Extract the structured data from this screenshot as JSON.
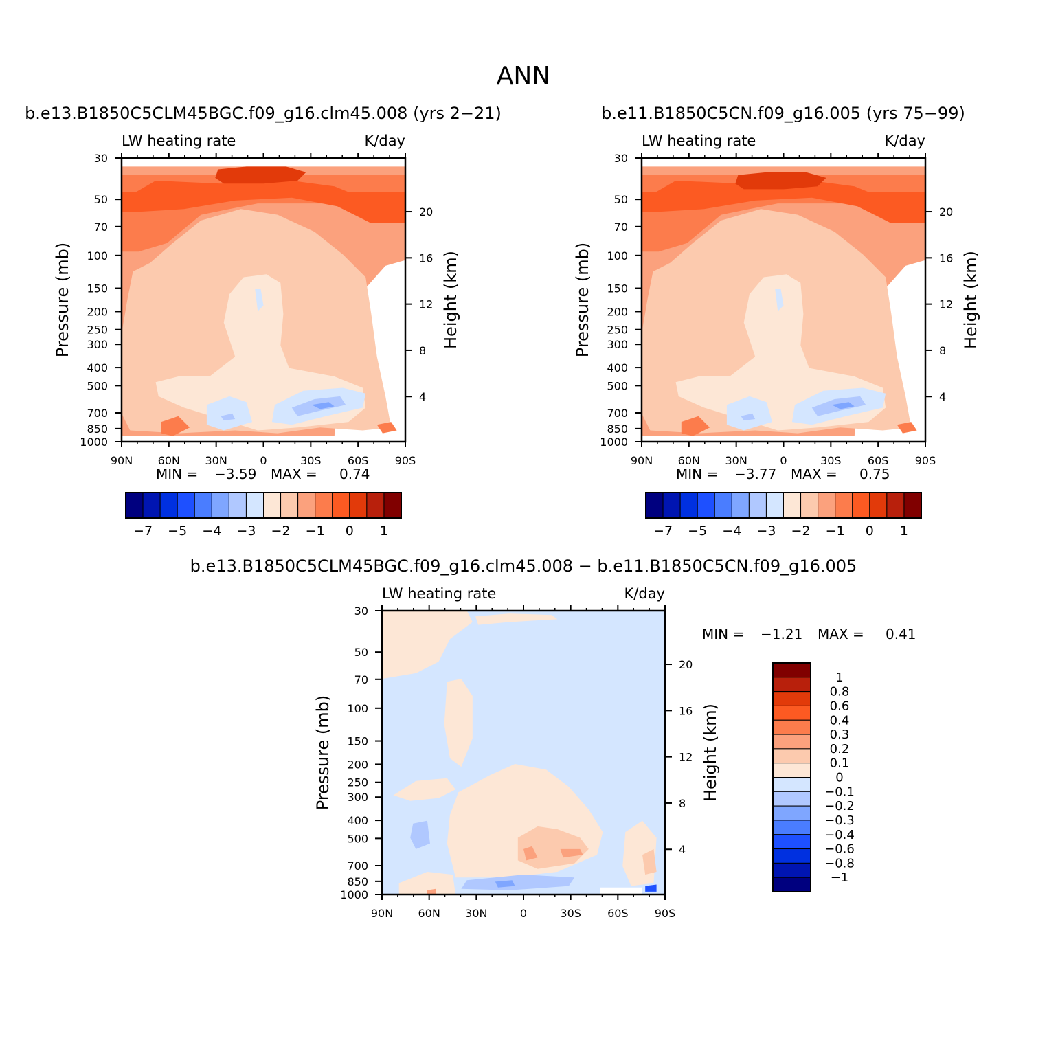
{
  "figure": {
    "title": "ANN"
  },
  "chart_data": [
    {
      "type": "heatmap",
      "id": "case1",
      "title": "b.e13.B1850C5CLM45BGC.f09_g16.clm45.008 (yrs 2-21)",
      "left_label": "LW heating rate",
      "right_label": "K/day",
      "xlabel": "",
      "ylabel": "Pressure (mb)",
      "ylabel_right": "Height (km)",
      "x_ticks": [
        "90N",
        "60N",
        "30N",
        "0",
        "30S",
        "60S",
        "90S"
      ],
      "y_ticks": [
        "30",
        "50",
        "70",
        "100",
        "150",
        "200",
        "250",
        "300",
        "400",
        "500",
        "700",
        "850",
        "1000"
      ],
      "y_ticks_right": [
        "20",
        "16",
        "12",
        "8",
        "4"
      ],
      "min_label": "MIN =",
      "min_value": "-3.59",
      "max_label": "MAX =",
      "max_value": "0.74",
      "colorbar_labels": [
        "-7",
        "-5",
        "-4",
        "-3",
        "-2",
        "-1",
        "0",
        "1"
      ],
      "colorbar_colors": [
        "#00007f",
        "#0015b2",
        "#0030e0",
        "#1e50ff",
        "#4a7dff",
        "#7fa6ff",
        "#b0c8ff",
        "#d4e6ff",
        "#fde7d6",
        "#fccaae",
        "#fba17d",
        "#fc7c4c",
        "#fc5a22",
        "#e23a0a",
        "#b8200c",
        "#800000"
      ]
    },
    {
      "type": "heatmap",
      "id": "case2",
      "title": "b.e11.B1850C5CN.f09_g16.005 (yrs 75-99)",
      "left_label": "LW heating rate",
      "right_label": "K/day",
      "xlabel": "",
      "ylabel": "Pressure (mb)",
      "ylabel_right": "Height (km)",
      "x_ticks": [
        "90N",
        "60N",
        "30N",
        "0",
        "30S",
        "60S",
        "90S"
      ],
      "y_ticks": [
        "30",
        "50",
        "70",
        "100",
        "150",
        "200",
        "250",
        "300",
        "400",
        "500",
        "700",
        "850",
        "1000"
      ],
      "y_ticks_right": [
        "20",
        "16",
        "12",
        "8",
        "4"
      ],
      "min_label": "MIN =",
      "min_value": "-3.77",
      "max_label": "MAX =",
      "max_value": "0.75",
      "colorbar_labels": [
        "-7",
        "-5",
        "-4",
        "-3",
        "-2",
        "-1",
        "0",
        "1"
      ],
      "colorbar_colors": [
        "#00007f",
        "#0015b2",
        "#0030e0",
        "#1e50ff",
        "#4a7dff",
        "#7fa6ff",
        "#b0c8ff",
        "#d4e6ff",
        "#fde7d6",
        "#fccaae",
        "#fba17d",
        "#fc7c4c",
        "#fc5a22",
        "#e23a0a",
        "#b8200c",
        "#800000"
      ]
    },
    {
      "type": "heatmap",
      "id": "diff",
      "title": "b.e13.B1850C5CLM45BGC.f09_g16.clm45.008 - b.e11.B1850C5CN.f09_g16.005",
      "left_label": "LW heating rate",
      "right_label": "K/day",
      "xlabel": "",
      "ylabel": "Pressure (mb)",
      "ylabel_right": "Height (km)",
      "x_ticks": [
        "90N",
        "60N",
        "30N",
        "0",
        "30S",
        "60S",
        "90S"
      ],
      "y_ticks": [
        "30",
        "50",
        "70",
        "100",
        "150",
        "200",
        "250",
        "300",
        "400",
        "500",
        "700",
        "850",
        "1000"
      ],
      "y_ticks_right": [
        "20",
        "16",
        "12",
        "8",
        "4"
      ],
      "min_label": "MIN =",
      "min_value": "-1.21",
      "max_label": "MAX =",
      "max_value": "0.41",
      "colorbar_labels": [
        "1",
        "0.8",
        "0.6",
        "0.4",
        "0.3",
        "0.2",
        "0.1",
        "0",
        "-0.1",
        "-0.2",
        "-0.3",
        "-0.4",
        "-0.6",
        "-0.8",
        "-1"
      ],
      "colorbar_colors": [
        "#800000",
        "#b8200c",
        "#e23a0a",
        "#fc5a22",
        "#fc7c4c",
        "#fba17d",
        "#fccaae",
        "#fde7d6",
        "#d4e6ff",
        "#b0c8ff",
        "#7fa6ff",
        "#4a7dff",
        "#1e50ff",
        "#0030e0",
        "#0015b2",
        "#00007f"
      ]
    }
  ]
}
